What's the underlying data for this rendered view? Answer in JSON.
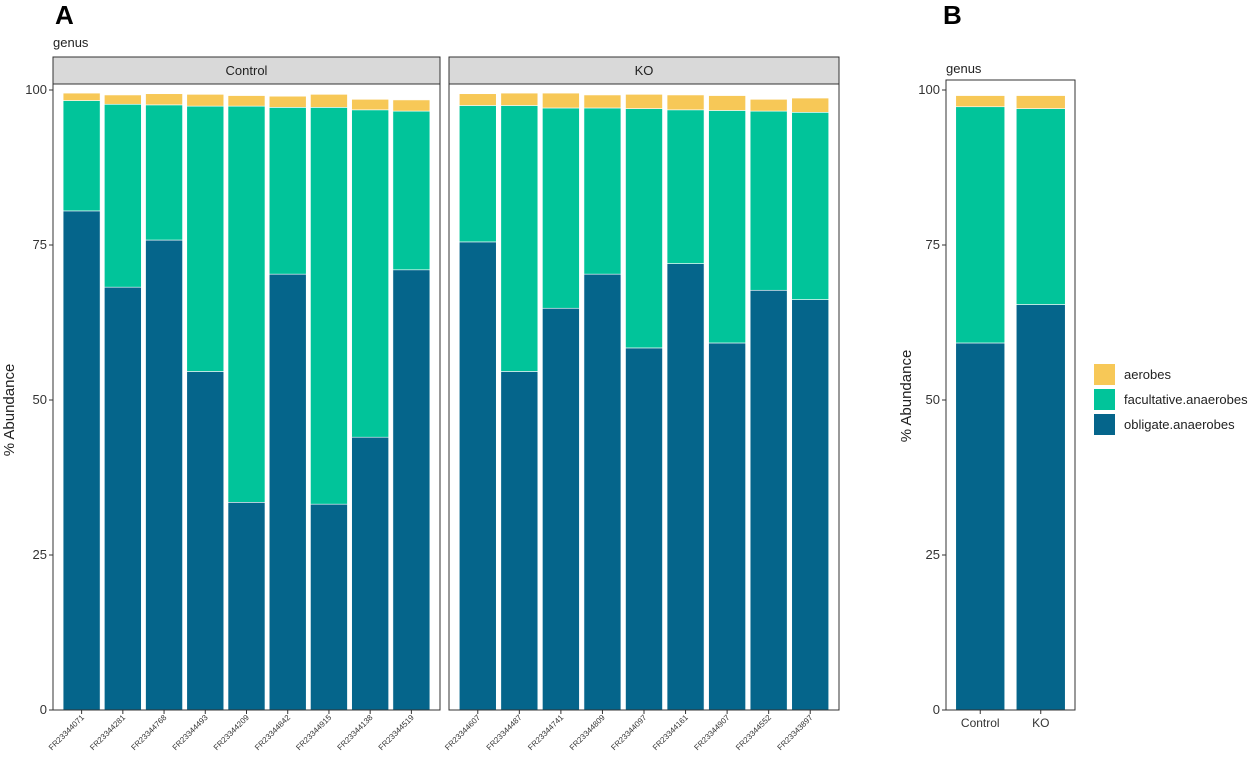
{
  "colors": {
    "aerobes": "#f7c857",
    "facultative": "#01c49a",
    "obligate": "#05658b",
    "strip_fill": "#d9d9d9"
  },
  "chart_data": [
    {
      "panel": "A",
      "type": "bar",
      "stacked": true,
      "subtitle": "genus",
      "ylabel": "% Abundance",
      "ylim": [
        0,
        100
      ],
      "yticks": [
        0,
        25,
        50,
        75,
        100
      ],
      "facets": [
        {
          "label": "Control",
          "categories": [
            "FR23344071",
            "FR23344281",
            "FR23344768",
            "FR23344493",
            "FR23344209",
            "FR23344842",
            "FR23344915",
            "FR23344138",
            "FR23344519"
          ],
          "series": [
            {
              "name": "obligate.anaerobes",
              "values": [
                80.5,
                68.2,
                75.8,
                54.6,
                33.5,
                70.3,
                33.2,
                44.0,
                71.0
              ]
            },
            {
              "name": "facultative.anaerobes",
              "values": [
                17.8,
                29.5,
                21.8,
                42.8,
                63.9,
                26.9,
                64.0,
                52.8,
                25.6
              ]
            },
            {
              "name": "aerobes",
              "values": [
                1.2,
                1.5,
                1.8,
                1.9,
                1.7,
                1.8,
                2.1,
                1.7,
                1.8
              ]
            }
          ]
        },
        {
          "label": "KO",
          "categories": [
            "FR23344607",
            "FR23344487",
            "FR23344741",
            "FR23344809",
            "FR23344097",
            "FR23344161",
            "FR23344907",
            "FR23344552",
            "FR23343897"
          ],
          "series": [
            {
              "name": "obligate.anaerobes",
              "values": [
                75.5,
                54.6,
                64.8,
                70.3,
                58.4,
                72.0,
                59.2,
                67.7,
                66.2
              ]
            },
            {
              "name": "facultative.anaerobes",
              "values": [
                22.0,
                42.9,
                32.3,
                26.8,
                38.6,
                24.8,
                37.5,
                28.9,
                30.2
              ]
            },
            {
              "name": "aerobes",
              "values": [
                1.9,
                2.0,
                2.4,
                2.1,
                2.3,
                2.4,
                2.4,
                1.9,
                2.3
              ]
            }
          ]
        }
      ]
    },
    {
      "panel": "B",
      "type": "bar",
      "stacked": true,
      "subtitle": "genus",
      "ylabel": "% Abundance",
      "ylim": [
        0,
        100
      ],
      "yticks": [
        0,
        25,
        50,
        75,
        100
      ],
      "categories": [
        "Control",
        "KO"
      ],
      "series": [
        {
          "name": "obligate.anaerobes",
          "values": [
            59.2,
            65.4
          ]
        },
        {
          "name": "facultative.anaerobes",
          "values": [
            38.1,
            31.6
          ]
        },
        {
          "name": "aerobes",
          "values": [
            1.8,
            2.1
          ]
        }
      ]
    }
  ],
  "legend": {
    "position": "right",
    "items": [
      {
        "key": "aerobes",
        "label": "aerobes"
      },
      {
        "key": "facultative",
        "label": "facultative.anaerobes"
      },
      {
        "key": "obligate",
        "label": "obligate.anaerobes"
      }
    ]
  }
}
